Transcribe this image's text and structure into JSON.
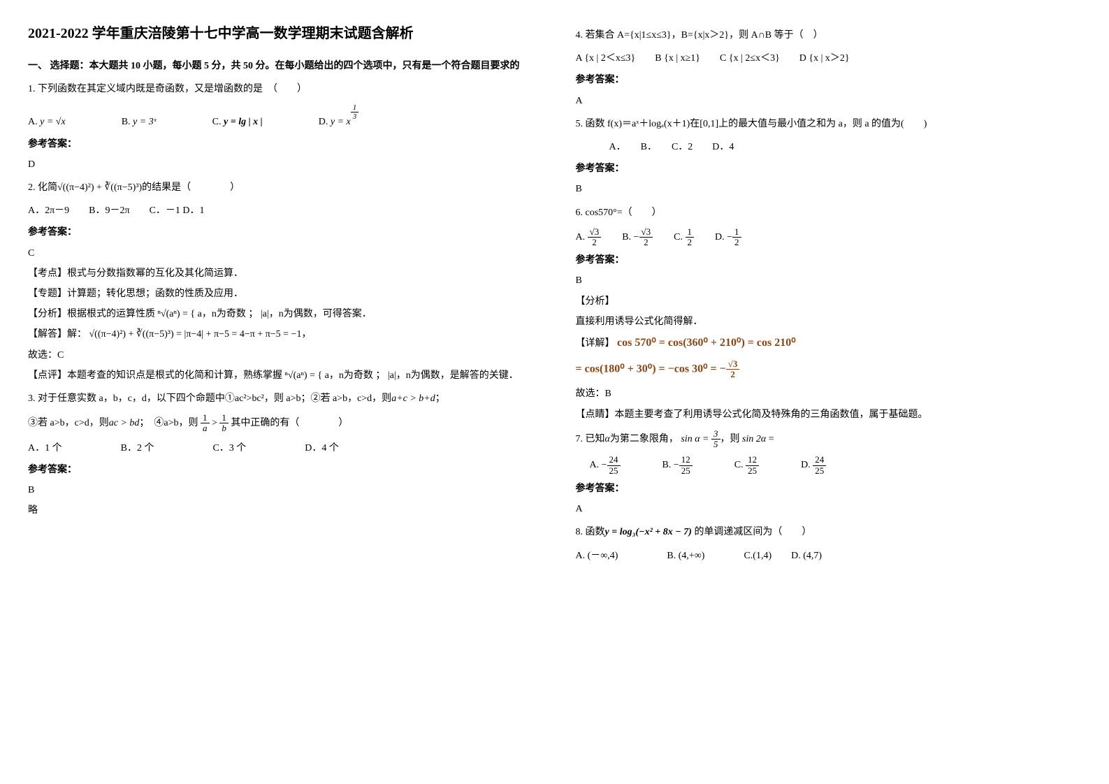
{
  "title": "2021-2022 学年重庆涪陵第十七中学高一数学理期末试题含解析",
  "section1": "一、 选择题：本大题共 10 小题，每小题 5 分，共 50 分。在每小题给出的四个选项中，只有是一个符合题目要求的",
  "q1": {
    "stem": "1. 下列函数在其定义域内既是奇函数，又是增函数的是　（　　）",
    "optA_label": "A.",
    "optA": "y = √x",
    "optB_label": "B.",
    "optB": "y = 3ˣ",
    "optC_label": "C.",
    "optC": "y = lg | x |",
    "optD_label": "D.",
    "optD_html": "y = x^{1/3}",
    "answer_label": "参考答案：",
    "answer": "D"
  },
  "q2": {
    "stem_pre": "2. 化简",
    "stem_math": "√((π−4)²) + ∛((π−5)³)",
    "stem_post": "的结果是（　　　　）",
    "opts": "A．2π－9　　B．9－2π　　C．－1 D．1",
    "answer_label": "参考答案：",
    "answer": "C",
    "kaodian": "【考点】根式与分数指数幂的互化及其化简运算．",
    "zhuanti": "【专题】计算题；转化思想；函数的性质及应用．",
    "fenxi_pre": "【分析】根据根式的运算性质",
    "fenxi_math": "ⁿ√(aⁿ) = { a，n为奇数 ； |a|，n为偶数",
    "fenxi_post": "，可得答案．",
    "jieda_pre": "【解答】解：",
    "jieda_math": "√((π−4)²) + ∛((π−5)³) = |π−4| + π−5 = 4−π + π−5 = −1，",
    "jieda_post": "故选：C",
    "dianping_pre": "【点评】本题考查的知识点是根式的化简和计算，熟练掌握",
    "dianping_math": "ⁿ√(aⁿ) = { a，n为奇数 ； |a|，n为偶数",
    "dianping_post": "，是解答的关键．"
  },
  "q3": {
    "stem_l1_a": "3. 对于任意实数 a，b，c，d，以下四个命题中①ac²>bc²，则 a>b；②若 a>b，c>d，则",
    "stem_l1_b": "a+c > b+d",
    "stem_l1_c": "；",
    "stem_l2_a": "③若 a>b，c>d，则",
    "stem_l2_b": "ac > bd",
    "stem_l2_c": "；　④a>b，则",
    "stem_l2_d": "1/a > 1/b",
    "stem_l2_e": " 其中正确的有（　　　　）",
    "opts": "A．1 个　　　　　　B．2 个　　　　　　C．3 个　　　　　　D．4 个",
    "answer_label": "参考答案：",
    "answer": "B",
    "lue": "略"
  },
  "q4": {
    "stem": "4. 若集合 A={x|1≤x≤3}，B={x|x＞2}，则 A∩B 等于（　）",
    "opts": "A {x | 2＜x≤3}　　B {x | x≥1}　　C {x | 2≤x＜3}　　D {x | x＞2}",
    "answer_label": "参考答案：",
    "answer": "A"
  },
  "q5": {
    "stem": " 5. 函数 f(x)＝aˣ＋logₐ(x＋1)在[0,1]上的最大值与最小值之和为 a，则 a 的值为(　　)",
    "opts": "　　A．　　B．　　C．2　　D．4",
    "answer_label": "参考答案：",
    "answer": " B"
  },
  "q6": {
    "stem": "6.  cos570°=（　　）",
    "optA_label": "A.",
    "optA_num": "√3",
    "optA_den": "2",
    "optB_label": "B.",
    "optB_neg": "−",
    "optB_num": "√3",
    "optB_den": "2",
    "optC_label": "C.",
    "optC_num": "1",
    "optC_den": "2",
    "optD_label": "D.",
    "optD_neg": "−",
    "optD_num": "1",
    "optD_den": "2",
    "answer_label": "参考答案：",
    "answer": "B",
    "fenxi_label": "【分析】",
    "fenxi": "直接利用诱导公式化简得解．",
    "xiangjie_label": "【详解】",
    "xiangjie_line1": "cos 570⁰ = cos(360⁰ + 210⁰) = cos 210⁰",
    "xiangjie_line2_a": "= cos(180⁰ + 30⁰) = −cos 30⁰ = −",
    "xiangjie_line2_num": "√3",
    "xiangjie_line2_den": "2",
    "guxuan": "故选：B",
    "dianjing": "【点睛】本题主要考查了利用诱导公式化简及特殊角的三角函数值，属于基础题。"
  },
  "q7": {
    "stem_a": "7. 已知",
    "stem_b": "α",
    "stem_c": "为第二象限角，",
    "stem_sin_pre": "sin α = ",
    "stem_sin_num": "3",
    "stem_sin_den": "5",
    "stem_d": "，则",
    "stem_e": "sin 2α",
    "stem_f": " =",
    "optA_label": "A.",
    "optA_neg": "−",
    "optA_num": "24",
    "optA_den": "25",
    "optB_label": "B.",
    "optB_neg": "−",
    "optB_num": "12",
    "optB_den": "25",
    "optC_label": "C.",
    "optC_num": "12",
    "optC_den": "25",
    "optD_label": "D.",
    "optD_num": "24",
    "optD_den": "25",
    "answer_label": "参考答案：",
    "answer": "A"
  },
  "q8": {
    "stem_a": "8. 函数",
    "stem_b": "y = log₃(−x² + 8x − 7)",
    "stem_c": " 的单调递减区间为（　　）",
    "opts": "A. (－∞,4)　　　　　B. (4,+∞)　　　　C.(1,4)　　D. (4,7)"
  }
}
